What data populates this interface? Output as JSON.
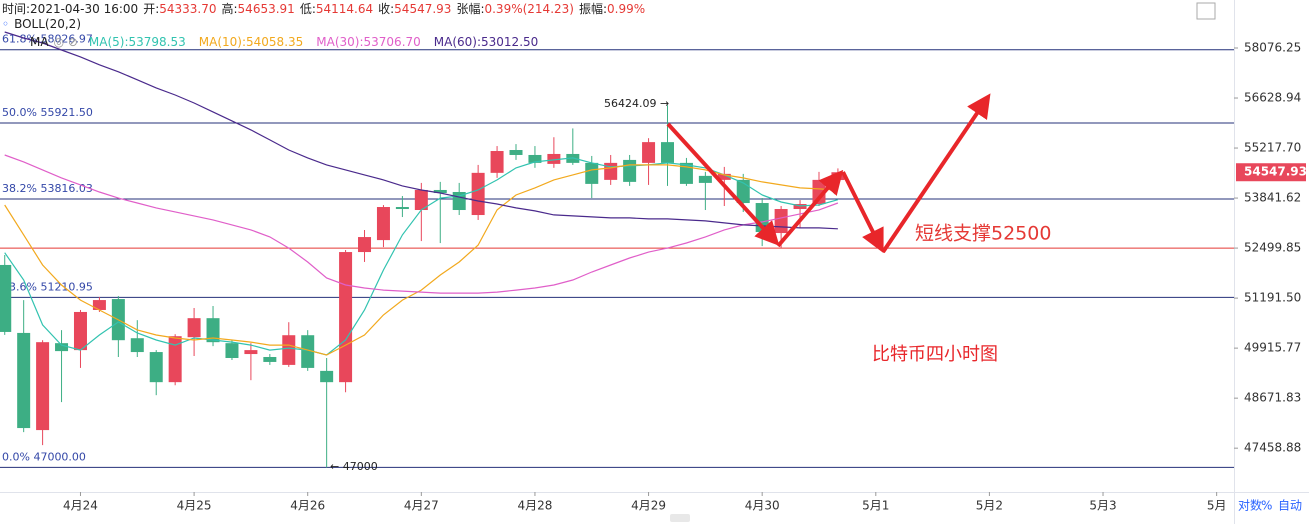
{
  "header": {
    "items": [
      {
        "label": "时间:",
        "value": "2021-04-30 16:00"
      },
      {
        "label": "开:",
        "value": "54333.70"
      },
      {
        "label": "高:",
        "value": "54653.91"
      },
      {
        "label": "低:",
        "value": "54114.64"
      },
      {
        "label": "收:",
        "value": "54547.93"
      },
      {
        "label": "张幅:",
        "value": "0.39%(214.23)"
      },
      {
        "label": "振幅:",
        "value": "0.99%"
      }
    ],
    "boll": "BOLL(20,2)",
    "ma": "MA"
  },
  "controls": [
    "对数",
    "%",
    "自动"
  ],
  "chart_data": {
    "type": "candlestick",
    "title": "比特币四小时图",
    "log_scale": true,
    "up_color": "#e8475b",
    "down_color": "#3dae84",
    "x": [
      "2021-04-23 08:00",
      "2021-04-23 12:00",
      "2021-04-23 16:00",
      "2021-04-23 20:00",
      "2021-04-24 00:00",
      "2021-04-24 04:00",
      "2021-04-24 08:00",
      "2021-04-24 12:00",
      "2021-04-24 16:00",
      "2021-04-24 20:00",
      "2021-04-25 00:00",
      "2021-04-25 04:00",
      "2021-04-25 08:00",
      "2021-04-25 12:00",
      "2021-04-25 16:00",
      "2021-04-25 20:00",
      "2021-04-26 00:00",
      "2021-04-26 04:00",
      "2021-04-26 08:00",
      "2021-04-26 12:00",
      "2021-04-26 16:00",
      "2021-04-26 20:00",
      "2021-04-27 00:00",
      "2021-04-27 04:00",
      "2021-04-27 08:00",
      "2021-04-27 12:00",
      "2021-04-27 16:00",
      "2021-04-27 20:00",
      "2021-04-28 00:00",
      "2021-04-28 04:00",
      "2021-04-28 08:00",
      "2021-04-28 12:00",
      "2021-04-28 16:00",
      "2021-04-28 20:00",
      "2021-04-29 00:00",
      "2021-04-29 04:00",
      "2021-04-29 08:00",
      "2021-04-29 12:00",
      "2021-04-29 16:00",
      "2021-04-29 20:00",
      "2021-04-30 00:00",
      "2021-04-30 04:00",
      "2021-04-30 08:00",
      "2021-04-30 12:00",
      "2021-04-30 16:00"
    ],
    "open": [
      52055,
      50300,
      47894,
      50041,
      49866,
      50886,
      51167,
      50166,
      49817,
      49066,
      50192,
      50676,
      50041,
      49767,
      49693,
      49495,
      50242,
      49346,
      49066,
      52395,
      52712,
      53599,
      53518,
      54062,
      54007,
      53383,
      54531,
      55163,
      55025,
      54778,
      55053,
      54806,
      54338,
      54888,
      54806,
      55383,
      54806,
      54448,
      54338,
      54338,
      53707,
      52900,
      53545,
      53680,
      54333.7
    ],
    "high": [
      52317,
      51140,
      50116,
      50371,
      50886,
      51218,
      51244,
      50625,
      49866,
      50268,
      50937,
      50988,
      50116,
      50041,
      49767,
      50573,
      50371,
      49668,
      52448,
      52981,
      53652,
      53897,
      54255,
      54283,
      54255,
      54750,
      55273,
      55328,
      55273,
      55520,
      55767,
      54998,
      55025,
      55025,
      55493,
      56424.09,
      54943,
      54558,
      54695,
      54503,
      53842,
      53626,
      53788,
      54558,
      54653.91
    ],
    "low": [
      50250,
      47846,
      47532,
      48575,
      49420,
      50835,
      49693,
      49693,
      48745,
      48990,
      49718,
      49966,
      49618,
      49115,
      49495,
      49445,
      49346,
      47000,
      48817,
      52134,
      52526,
      53329,
      52686,
      52633,
      53383,
      53250,
      54394,
      54888,
      54669,
      54669,
      54750,
      53842,
      54200,
      54173,
      54200,
      54173,
      54173,
      53518,
      53626,
      53464,
      52553,
      52500,
      53035,
      53626,
      54114.64
    ],
    "close": [
      50325,
      47943,
      50066,
      49841,
      50835,
      51141,
      50116,
      49817,
      49066,
      50217,
      50676,
      50066,
      49668,
      49866,
      49569,
      50242,
      49420,
      49066,
      52395,
      52793,
      53599,
      53545,
      54062,
      53979,
      53518,
      54531,
      55135,
      55025,
      54806,
      55053,
      54806,
      54228,
      54806,
      54283,
      55383,
      54806,
      54228,
      54255,
      54503,
      53707,
      52927,
      53545,
      53680,
      54338,
      54547.93
    ],
    "series": [
      {
        "name": "MA(5):53798.53",
        "color": "#32c3b0",
        "values": [
          52378,
          51662,
          50503,
          49993,
          49866,
          50248,
          50580,
          50299,
          50120,
          49993,
          50171,
          50120,
          50069,
          49993,
          49866,
          49916,
          49866,
          49742,
          50120,
          50886,
          51924,
          52850,
          53520,
          53842,
          53897,
          54062,
          54338,
          54668,
          54833,
          54888,
          54943,
          54806,
          54696,
          54723,
          54751,
          54806,
          54751,
          54668,
          54476,
          54256,
          53924,
          53735,
          53628,
          53654,
          53798.53
        ]
      },
      {
        "name": "MA(10):54058.35",
        "color": "#f2a91e",
        "values": [
          53654,
          52850,
          52055,
          51531,
          51141,
          50886,
          50631,
          50376,
          50248,
          50171,
          50120,
          50171,
          50120,
          50069,
          49993,
          49993,
          49866,
          49742,
          49993,
          50248,
          50759,
          51141,
          51400,
          51793,
          52133,
          52580,
          53520,
          53924,
          54118,
          54338,
          54476,
          54613,
          54668,
          54751,
          54751,
          54751,
          54696,
          54613,
          54476,
          54393,
          54283,
          54200,
          54118,
          54090,
          54058.35
        ]
      },
      {
        "name": "MA(30):53706.70",
        "color": "#e05fc9",
        "values": [
          55025,
          54833,
          54613,
          54393,
          54200,
          54008,
          53842,
          53708,
          53574,
          53467,
          53360,
          53252,
          53118,
          52984,
          52797,
          52500,
          52133,
          51714,
          51531,
          51452,
          51400,
          51374,
          51348,
          51321,
          51321,
          51321,
          51348,
          51400,
          51452,
          51531,
          51662,
          51871,
          52055,
          52238,
          52395,
          52500,
          52634,
          52797,
          52984,
          53118,
          53198,
          53306,
          53413,
          53520,
          53706.7
        ]
      },
      {
        "name": "MA(60):53012.50",
        "color": "#4a2a8c",
        "values": [
          58548,
          58371,
          58223,
          58018,
          57816,
          57585,
          57382,
          57151,
          56920,
          56716,
          56488,
          56234,
          55980,
          55726,
          55444,
          55163,
          54943,
          54750,
          54613,
          54475,
          54338,
          54173,
          54062,
          53979,
          53869,
          53762,
          53681,
          53574,
          53494,
          53386,
          53360,
          53333,
          53306,
          53306,
          53279,
          53279,
          53252,
          53226,
          53172,
          53118,
          53092,
          53065,
          53038,
          53038,
          53012.5
        ]
      }
    ],
    "ylim": [
      46421,
      59500
    ],
    "yticks": [
      58076.25,
      56628.94,
      {
        "value": 55217.7,
        "label": "55217.70"
      },
      53841.62,
      52499.85,
      {
        "value": 51191.5,
        "label": "51191.50"
      },
      49915.77,
      48671.83,
      47458.88
    ],
    "xlim": [
      "2021-04-23 07:00",
      "2021-05-04 03:40"
    ],
    "xticks": [
      {
        "value": "2021-04-24 00:00",
        "label": "4月24"
      },
      {
        "value": "2021-04-25 00:00",
        "label": "4月25"
      },
      {
        "value": "2021-04-26 00:00",
        "label": "4月26"
      },
      {
        "value": "2021-04-27 00:00",
        "label": "4月27"
      },
      {
        "value": "2021-04-28 00:00",
        "label": "4月28"
      },
      {
        "value": "2021-04-29 00:00",
        "label": "4月29"
      },
      {
        "value": "2021-04-30 00:00",
        "label": "4月30"
      },
      {
        "value": "2021-05-01 00:00",
        "label": "5月1"
      },
      {
        "value": "2021-05-02 00:00",
        "label": "5月2"
      },
      {
        "value": "2021-05-03 00:00",
        "label": "5月3"
      },
      {
        "value": "2021-05-04 00:00",
        "label": "5月"
      }
    ],
    "levels": [
      {
        "label": "61.8% 58026.97",
        "value": 58026.97
      },
      {
        "label": "50.0% 55921.50",
        "value": 55921.5
      },
      {
        "label": "38.2% 53816.03",
        "value": 53816.03
      },
      {
        "label": "23.6% 51210.95",
        "value": 51210.95
      },
      {
        "label": "0.0% 47000.00",
        "value": 47000
      }
    ],
    "level_color": "#24307a",
    "support": {
      "label": "短线支撑52500",
      "value": 52500,
      "color": "#e53935"
    },
    "annotations": [
      "56424.09 →",
      "← 47000"
    ]
  }
}
